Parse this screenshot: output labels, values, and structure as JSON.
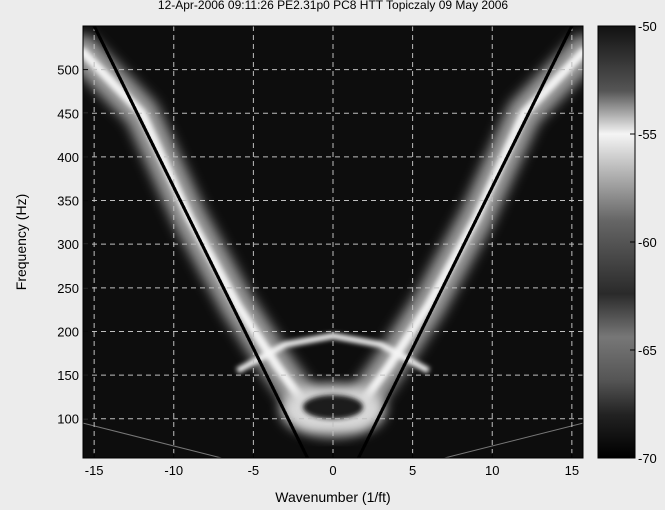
{
  "chart_data": {
    "type": "heatmap",
    "title": "12-Apr-2006 09:11:26 PE2.31p0 PC8 HTT Topiczaly 09 May 2006",
    "xlabel": "Wavenumber (1/ft)",
    "ylabel": "Frequency (Hz)",
    "xlim": [
      -15.7,
      15.7
    ],
    "ylim": [
      55,
      550
    ],
    "xticks": [
      -15,
      -10,
      -5,
      0,
      5,
      10,
      15
    ],
    "yticks": [
      100,
      150,
      200,
      250,
      300,
      350,
      400,
      450,
      500
    ],
    "grid": true,
    "colormap": "gray",
    "colorbar": {
      "min": -70,
      "max": -50,
      "ticks": [
        -50,
        -55,
        -60,
        -65,
        -70
      ]
    },
    "dispersion_lines": [
      {
        "x": [
          -15,
          -1.6
        ],
        "y": [
          550,
          55
        ]
      },
      {
        "x": [
          1.6,
          15
        ],
        "y": [
          55,
          550
        ]
      }
    ],
    "features": [
      {
        "shape": "dispersion-branch",
        "x": [
          -15.7,
          -12,
          -9,
          -6,
          -3.5,
          -1.5
        ],
        "y": [
          520,
          450,
          330,
          230,
          160,
          110
        ]
      },
      {
        "shape": "dispersion-branch",
        "x": [
          15.7,
          12,
          9,
          6,
          3.5,
          1.5
        ],
        "y": [
          520,
          450,
          330,
          230,
          160,
          110
        ]
      },
      {
        "shape": "resonance-band",
        "y": 155,
        "xlim": [
          -15.7,
          15.7
        ]
      },
      {
        "shape": "bowl",
        "x": [
          -6,
          -3,
          0,
          3,
          6
        ],
        "y": [
          155,
          185,
          195,
          185,
          155
        ]
      },
      {
        "shape": "lobe",
        "x": 0,
        "y": 110
      }
    ]
  }
}
